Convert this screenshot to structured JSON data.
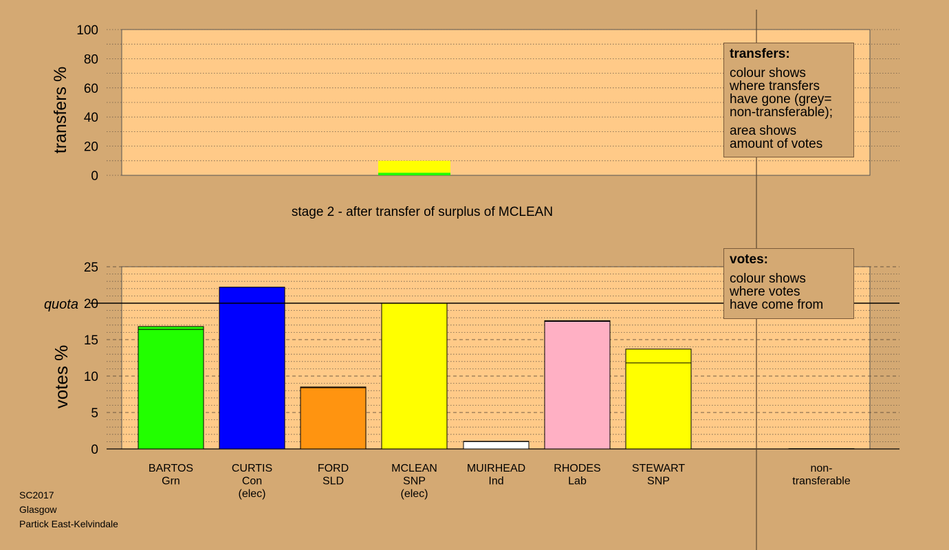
{
  "chart_data": [
    {
      "type": "bar",
      "ylabel": "transfers %",
      "ylim": [
        0,
        100
      ],
      "yticks": [
        0,
        20,
        40,
        60,
        80,
        100
      ],
      "categories": [
        "BARTOS",
        "CURTIS",
        "FORD",
        "MCLEAN",
        "MUIRHEAD",
        "RHODES",
        "STEWART"
      ],
      "stacks": [
        {
          "category": "MCLEAN",
          "segments": [
            {
              "value": 1.8,
              "color": "#22ff00"
            },
            {
              "value": 8.2,
              "color": "#ffff00"
            }
          ]
        }
      ],
      "grid": "dotted"
    },
    {
      "type": "bar",
      "ylabel": "votes %",
      "ylim": [
        0,
        25
      ],
      "yticks": [
        0,
        5,
        10,
        15,
        20,
        25
      ],
      "quota": {
        "value": 20,
        "label": "quota"
      },
      "categories": [
        {
          "name": "BARTOS",
          "party": "Grn",
          "note": "",
          "base": 16.4,
          "transfer": 0.4,
          "color": "#22ff00"
        },
        {
          "name": "CURTIS",
          "party": "Con",
          "note": "(elec)",
          "base": 22.2,
          "transfer": 0,
          "color": "#0000ff"
        },
        {
          "name": "FORD",
          "party": "SLD",
          "note": "",
          "base": 8.4,
          "transfer": 0.1,
          "color": "#ff9410"
        },
        {
          "name": "MCLEAN",
          "party": "SNP",
          "note": "(elec)",
          "base": 20.0,
          "transfer": 0,
          "color": "#ffff00"
        },
        {
          "name": "MUIRHEAD",
          "party": "Ind",
          "note": "",
          "base": 1.0,
          "transfer": 0.05,
          "color": "#ffffff"
        },
        {
          "name": "RHODES",
          "party": "Lab",
          "note": "",
          "base": 17.5,
          "transfer": 0.1,
          "color": "#ffb0c4"
        },
        {
          "name": "STEWART",
          "party": "SNP",
          "note": "",
          "base": 11.8,
          "transfer": 1.9,
          "color": "#ffff00"
        }
      ],
      "non_transferable": {
        "line1": "non-",
        "line2": "transferable",
        "value": 0.05
      },
      "grid": "dotted"
    }
  ],
  "stage_title": "stage 2 - after transfer of surplus of MCLEAN",
  "legend_transfers": {
    "title": "transfers:",
    "p1": [
      "colour shows",
      "where transfers",
      "have gone (grey=",
      "non-transferable);"
    ],
    "p2": [
      "area shows",
      "amount of votes"
    ]
  },
  "legend_votes": {
    "title": "votes:",
    "p1": [
      "colour shows",
      "where votes",
      "have come from"
    ]
  },
  "footer": {
    "line1": "SC2017",
    "line2": "Glasgow",
    "line3": "Partick East-Kelvindale"
  },
  "colors": {
    "background": "#d4a973",
    "plot": "#ffca88"
  }
}
